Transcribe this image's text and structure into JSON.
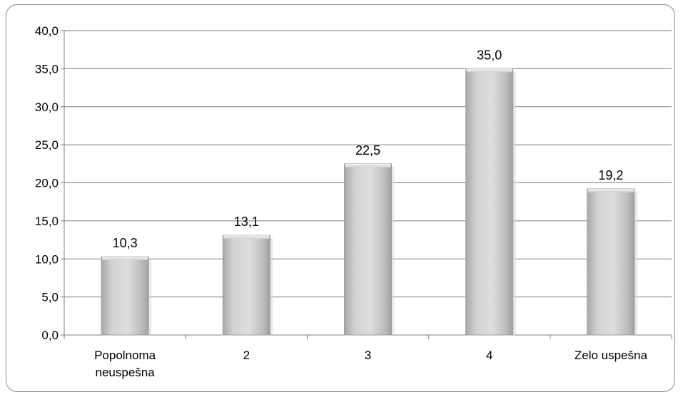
{
  "chart_data": {
    "type": "bar",
    "categories": [
      [
        "Popolnoma",
        "neuspešna"
      ],
      [
        "2"
      ],
      [
        "3"
      ],
      [
        "4"
      ],
      [
        "Zelo uspešna"
      ]
    ],
    "values": [
      10.3,
      13.1,
      22.5,
      35.0,
      19.2
    ],
    "value_labels": [
      "10,3",
      "13,1",
      "22,5",
      "35,0",
      "19,2"
    ],
    "title": "",
    "xlabel": "",
    "ylabel": "",
    "ylim": [
      0,
      40
    ],
    "yticks": [
      0,
      5,
      10,
      15,
      20,
      25,
      30,
      35,
      40
    ],
    "ytick_labels": [
      "0,0",
      "5,0",
      "10,0",
      "15,0",
      "20,0",
      "25,0",
      "30,0",
      "35,0",
      "40,0"
    ],
    "grid": true,
    "legend": "none",
    "colors": {
      "bar": "#c4c4c4",
      "bar_edge": "#9a9a9a",
      "grid": "#7f7f7f",
      "frame": "#8c8c8c"
    }
  }
}
